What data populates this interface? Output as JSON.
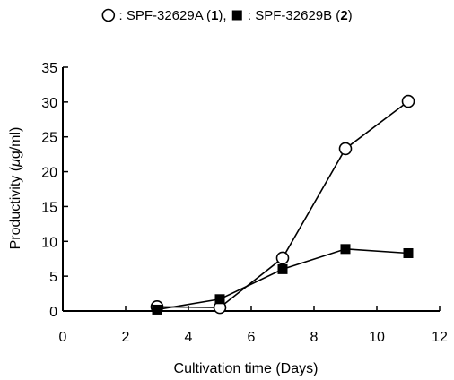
{
  "chart_data": {
    "type": "line",
    "legend": {
      "placement": "top-center",
      "entries": [
        {
          "marker": "open-circle",
          "text": " : SPF-32629A (",
          "bold": "1",
          "suffix": "),"
        },
        {
          "marker": "filled-square",
          "text": " : SPF-32629B (",
          "bold": "2",
          "suffix": ")"
        }
      ]
    },
    "xlabel": "Cultivation time (Days)",
    "ylabel_prefix": "Productivity (",
    "ylabel_mu": "μ",
    "ylabel_suffix": "g/ml)",
    "xlim": [
      0,
      12
    ],
    "ylim": [
      0,
      35
    ],
    "xticks": [
      0,
      2,
      4,
      6,
      8,
      10,
      12
    ],
    "yticks": [
      0,
      5,
      10,
      15,
      20,
      25,
      30,
      35
    ],
    "grid": false,
    "series": [
      {
        "name": "SPF-32629A (1)",
        "marker": "open-circle",
        "color": "#000000",
        "x": [
          3,
          5,
          7,
          9,
          11
        ],
        "y": [
          0.6,
          0.5,
          7.6,
          23.3,
          30.1
        ]
      },
      {
        "name": "SPF-32629B (2)",
        "marker": "filled-square",
        "color": "#000000",
        "x": [
          3,
          5,
          7,
          9,
          11
        ],
        "y": [
          0.2,
          1.7,
          6.0,
          8.9,
          8.3
        ]
      }
    ]
  }
}
